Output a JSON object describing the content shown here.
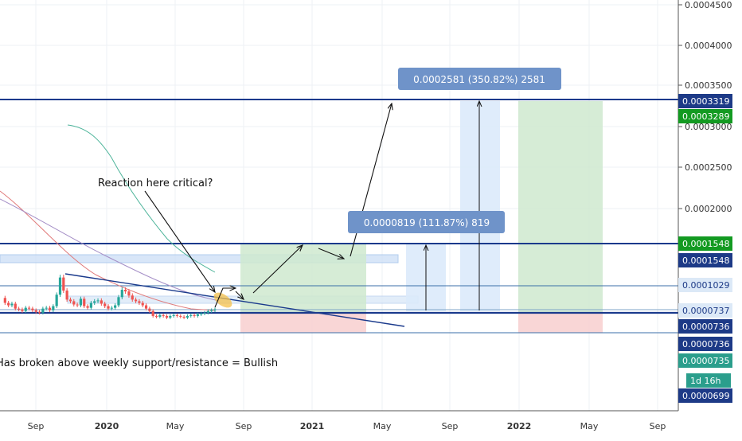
{
  "chart_data": {
    "type": "candlestick",
    "title": "",
    "y_scale": "linear",
    "ylim": [
      5e-05,
      0.00046
    ],
    "grid": true,
    "x_ticks": [
      "Sep",
      "2020",
      "May",
      "Sep",
      "2021",
      "May",
      "Sep",
      "2022",
      "May",
      "Sep"
    ],
    "y_ticks": [
      "0.0004500",
      "0.0004000",
      "0.0003500",
      "0.0003000",
      "0.0002500",
      "0.0002000"
    ],
    "price_badges": [
      {
        "label": "0.0003319",
        "style": "navy"
      },
      {
        "label": "0.0003289",
        "style": "green"
      },
      {
        "label": "0.0001548",
        "style": "green"
      },
      {
        "label": "0.0001548",
        "style": "navy"
      },
      {
        "label": "0.0001029",
        "style": "light"
      },
      {
        "label": "0.0000737",
        "style": "light"
      },
      {
        "label": "0.0000736",
        "style": "navy"
      },
      {
        "label": "0.0000736",
        "style": "navy"
      },
      {
        "label": "0.0000735",
        "style": "teal"
      },
      {
        "label": "1d 16h",
        "style": "teal-small"
      },
      {
        "label": "0.0000699",
        "style": "navy"
      }
    ],
    "horizontal_levels": [
      0.0003319,
      0.0001548,
      0.0001029,
      7.37e-05,
      6.4e-05
    ],
    "annotations": [
      {
        "text": "Reaction here critical?"
      },
      {
        "text": "Has broken above weekly support/resistance = Bullish"
      },
      {
        "text": "0.0000819 (111.87%) 819"
      },
      {
        "text": "0.0002581 (350.82%) 2581"
      }
    ],
    "price_series": [
      8.8e-05,
      8.2e-05,
      7.9e-05,
      8.1e-05,
      7.5e-05,
      7.4e-05,
      7.2e-05,
      7.6e-05,
      7.5e-05,
      7.3e-05,
      7.1e-05,
      7e-05,
      7.5e-05,
      7.6e-05,
      7.3e-05,
      7.8e-05,
      9.2e-05,
      0.000113,
      9.7e-05,
      8.6e-05,
      8.4e-05,
      8e-05,
      7.9e-05,
      8.7e-05,
      7.8e-05,
      7.6e-05,
      8.2e-05,
      8.4e-05,
      8.5e-05,
      8.1e-05,
      7.8e-05,
      7.5e-05,
      7.6e-05,
      7.9e-05,
      8.9e-05,
      9.8e-05,
      9.6e-05,
      9.1e-05,
      8.6e-05,
      8.4e-05,
      8.2e-05,
      7.9e-05,
      7.5e-05,
      7.2e-05,
      6.6e-05,
      6.5e-05,
      6.7e-05,
      6.6e-05,
      6.4e-05,
      6.6e-05,
      6.7e-05,
      6.6e-05,
      6.5e-05,
      6.4e-05,
      6.6e-05,
      6.7e-05,
      6.6e-05,
      6.8e-05,
      6.9e-05,
      7e-05,
      7.2e-05,
      7.3e-05,
      7.4e-05
    ]
  }
}
